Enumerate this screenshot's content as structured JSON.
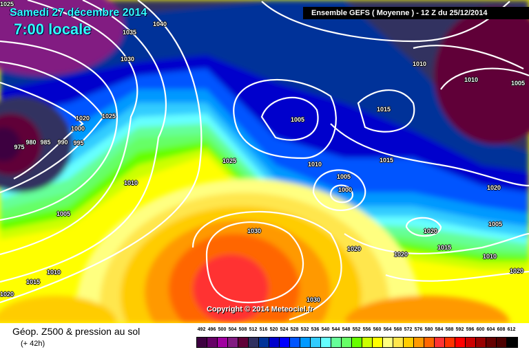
{
  "header": {
    "date": "Samedi 27 décembre 2014",
    "local_time": "7:00 locale",
    "run_info": "Ensemble GEFS  ( Moyenne )  -  12 Z du 25/12/2014"
  },
  "copyright": "Copyright © 2014 Meteociel.fr",
  "footer": {
    "product": "Géop. Z500 & pression au sol",
    "forecast_step": "(+ 42h)"
  },
  "legend": {
    "values": [
      "492",
      "496",
      "500",
      "504",
      "508",
      "512",
      "516",
      "520",
      "524",
      "528",
      "532",
      "536",
      "540",
      "544",
      "548",
      "552",
      "556",
      "560",
      "564",
      "568",
      "572",
      "576",
      "580",
      "584",
      "588",
      "592",
      "596",
      "600",
      "604",
      "608",
      "612"
    ],
    "colors": [
      "#3d0040",
      "#660066",
      "#a000a0",
      "#821b82",
      "#600038",
      "#303060",
      "#003399",
      "#0000cc",
      "#0000ff",
      "#0055ff",
      "#0099ff",
      "#33ccff",
      "#66ffff",
      "#66ff99",
      "#66ff66",
      "#66ff00",
      "#ccff00",
      "#ffff00",
      "#ffff80",
      "#ffe64d",
      "#ffcc00",
      "#ff9900",
      "#ff6600",
      "#ff3333",
      "#ff3300",
      "#ff0000",
      "#cc0000",
      "#990000",
      "#660000",
      "#4d0000",
      "#000000"
    ]
  },
  "isobar_labels": [
    "1025",
    "1035",
    "1040",
    "1030",
    "1020",
    "1025",
    "1000",
    "980",
    "985",
    "990",
    "995",
    "975",
    "1010",
    "1005",
    "1010",
    "1015",
    "1020",
    "1025",
    "1030",
    "1030",
    "1005",
    "1010",
    "1005",
    "1000",
    "1015",
    "1015",
    "1010",
    "1010",
    "1005",
    "1020",
    "1005",
    "1020",
    "1015",
    "1010",
    "1020",
    "1020",
    "1020"
  ]
}
